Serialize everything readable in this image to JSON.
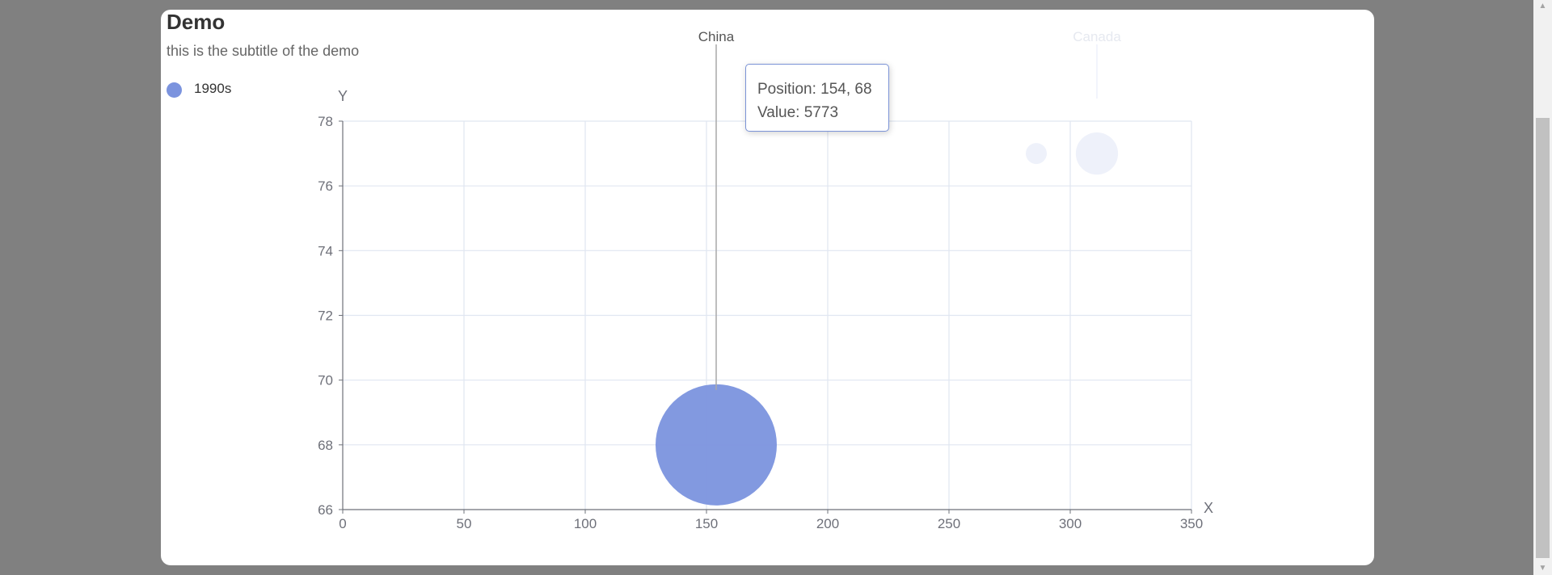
{
  "header": {
    "title": "Demo",
    "subtitle": "this is the subtitle of the demo"
  },
  "legend": {
    "items": [
      {
        "label": "1990s",
        "color": "#7b93de"
      }
    ]
  },
  "tooltip": {
    "line1": "Position: 154, 68",
    "line2": "Value: 5773"
  },
  "chart_data": {
    "type": "scatter",
    "title": "Demo",
    "subtitle": "this is the subtitle of the demo",
    "xlabel": "X",
    "ylabel": "Y",
    "xlim": [
      0,
      350
    ],
    "ylim": [
      66,
      78
    ],
    "x_ticks": [
      "0",
      "50",
      "100",
      "150",
      "200",
      "250",
      "300",
      "350"
    ],
    "y_ticks": [
      "66",
      "68",
      "70",
      "72",
      "74",
      "76",
      "78"
    ],
    "grid": true,
    "legend_position": "top-left",
    "series": [
      {
        "name": "1990s",
        "color": "#7b93de",
        "points": [
          {
            "x": 154,
            "y": 68,
            "value": 5773,
            "label": "China",
            "highlighted": true
          },
          {
            "x": 286,
            "y": 77,
            "value": 150,
            "label": "",
            "highlighted": false
          },
          {
            "x": 311,
            "y": 77,
            "value": 700,
            "label": "Canada",
            "highlighted": false
          }
        ]
      }
    ]
  },
  "scrollbar": {
    "up_glyph": "▲",
    "down_glyph": "▼"
  }
}
